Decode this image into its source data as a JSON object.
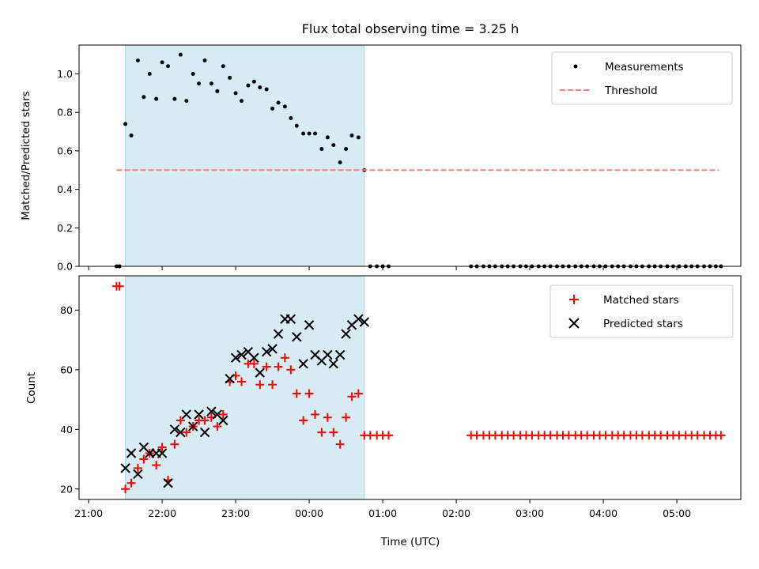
{
  "chart_data": {
    "title": "Flux total observing time = 3.25 h",
    "xlabel": "Time (UTC)",
    "x_unit": "hours (UTC clock, values past 24 are after midnight)",
    "xlim": [
      20.87,
      29.87
    ],
    "xticks": [
      {
        "v": 21,
        "label": "21:00"
      },
      {
        "v": 22,
        "label": "22:00"
      },
      {
        "v": 23,
        "label": "23:00"
      },
      {
        "v": 24,
        "label": "00:00"
      },
      {
        "v": 25,
        "label": "01:00"
      },
      {
        "v": 26,
        "label": "02:00"
      },
      {
        "v": 27,
        "label": "03:00"
      },
      {
        "v": 28,
        "label": "04:00"
      },
      {
        "v": 29,
        "label": "05:00"
      }
    ],
    "observing_window": {
      "start": 21.5,
      "end": 24.75,
      "color": "#add8e6"
    },
    "panels": [
      {
        "type": "scatter",
        "ylabel": "Matched/Predicted stars",
        "ylim": [
          0,
          1.15
        ],
        "yticks": [
          0.0,
          0.2,
          0.4,
          0.6,
          0.8,
          1.0
        ],
        "ytick_labels": [
          "0.0",
          "0.2",
          "0.4",
          "0.6",
          "0.8",
          "1.0"
        ],
        "legend_position": "top-right",
        "series": [
          {
            "name": "Measurements",
            "marker": "dot",
            "color": "#000000",
            "x": [
              21.38,
              21.42,
              21.5,
              21.58,
              21.67,
              21.75,
              21.83,
              21.92,
              22.0,
              22.08,
              22.17,
              22.25,
              22.33,
              22.42,
              22.5,
              22.58,
              22.67,
              22.75,
              22.83,
              22.92,
              23.0,
              23.08,
              23.17,
              23.25,
              23.33,
              23.42,
              23.5,
              23.58,
              23.67,
              23.75,
              23.83,
              23.92,
              24.0,
              24.08,
              24.17,
              24.25,
              24.33,
              24.42,
              24.5,
              24.58,
              24.67,
              24.75,
              24.83,
              24.92,
              25.0,
              25.08,
              26.2,
              26.28,
              26.37,
              26.45,
              26.53,
              26.62,
              26.7,
              26.78,
              26.87,
              26.95,
              27.03,
              27.12,
              27.2,
              27.28,
              27.37,
              27.45,
              27.53,
              27.62,
              27.7,
              27.78,
              27.87,
              27.95,
              28.03,
              28.12,
              28.2,
              28.28,
              28.37,
              28.45,
              28.53,
              28.62,
              28.7,
              28.78,
              28.87,
              28.95,
              29.03,
              29.12,
              29.2,
              29.28,
              29.37,
              29.45,
              29.53,
              29.6
            ],
            "y": [
              0.0,
              0.0,
              0.74,
              0.68,
              1.07,
              0.88,
              1.0,
              0.87,
              1.06,
              1.04,
              0.87,
              1.1,
              0.86,
              1.0,
              0.95,
              1.07,
              0.95,
              0.91,
              1.04,
              0.98,
              0.9,
              0.86,
              0.94,
              0.96,
              0.93,
              0.92,
              0.82,
              0.85,
              0.83,
              0.77,
              0.73,
              0.69,
              0.69,
              0.69,
              0.61,
              0.67,
              0.63,
              0.54,
              0.61,
              0.68,
              0.67,
              0.5,
              0.0,
              0.0,
              0.0,
              0.0,
              0.0,
              0.0,
              0.0,
              0.0,
              0.0,
              0.0,
              0.0,
              0.0,
              0.0,
              0.0,
              0.0,
              0.0,
              0.0,
              0.0,
              0.0,
              0.0,
              0.0,
              0.0,
              0.0,
              0.0,
              0.0,
              0.0,
              0.0,
              0.0,
              0.0,
              0.0,
              0.0,
              0.0,
              0.0,
              0.0,
              0.0,
              0.0,
              0.0,
              0.0,
              0.0,
              0.0,
              0.0,
              0.0,
              0.0,
              0.0,
              0.0,
              0.0
            ]
          },
          {
            "name": "Threshold",
            "marker": "dashed-line",
            "color": "#ff7f7f",
            "x": [
              21.38,
              29.57
            ],
            "y": [
              0.5,
              0.5
            ]
          }
        ]
      },
      {
        "type": "scatter",
        "ylabel": "Count",
        "ylim": [
          16.5,
          91.5
        ],
        "yticks": [
          20,
          40,
          60,
          80
        ],
        "ytick_labels": [
          "20",
          "40",
          "60",
          "80"
        ],
        "legend_position": "top-right",
        "series": [
          {
            "name": "Matched stars",
            "marker": "plus",
            "color": "#ff0000",
            "x": [
              21.38,
              21.42,
              21.5,
              21.58,
              21.67,
              21.75,
              21.83,
              21.92,
              22.0,
              22.08,
              22.17,
              22.25,
              22.33,
              22.42,
              22.5,
              22.58,
              22.67,
              22.75,
              22.83,
              22.92,
              23.0,
              23.08,
              23.17,
              23.25,
              23.33,
              23.42,
              23.5,
              23.58,
              23.67,
              23.75,
              23.83,
              23.92,
              24.0,
              24.08,
              24.17,
              24.25,
              24.33,
              24.42,
              24.5,
              24.58,
              24.67,
              24.75,
              24.83,
              24.92,
              25.0,
              25.08,
              26.2,
              26.28,
              26.37,
              26.45,
              26.53,
              26.62,
              26.7,
              26.78,
              26.87,
              26.95,
              27.03,
              27.12,
              27.2,
              27.28,
              27.37,
              27.45,
              27.53,
              27.62,
              27.7,
              27.78,
              27.87,
              27.95,
              28.03,
              28.12,
              28.2,
              28.28,
              28.37,
              28.45,
              28.53,
              28.62,
              28.7,
              28.78,
              28.87,
              28.95,
              29.03,
              29.12,
              29.2,
              29.28,
              29.37,
              29.45,
              29.53,
              29.6
            ],
            "y": [
              88,
              88,
              20,
              22,
              27,
              30,
              32,
              28,
              34,
              23,
              35,
              43,
              39,
              41,
              43,
              43,
              44,
              41,
              45,
              56,
              58,
              56,
              62,
              62,
              55,
              61,
              55,
              61,
              64,
              60,
              52,
              43,
              52,
              45,
              39,
              44,
              39,
              35,
              44,
              51,
              52,
              38,
              38,
              38,
              38,
              38,
              38,
              38,
              38,
              38,
              38,
              38,
              38,
              38,
              38,
              38,
              38,
              38,
              38,
              38,
              38,
              38,
              38,
              38,
              38,
              38,
              38,
              38,
              38,
              38,
              38,
              38,
              38,
              38,
              38,
              38,
              38,
              38,
              38,
              38,
              38,
              38,
              38,
              38,
              38,
              38,
              38,
              38
            ]
          },
          {
            "name": "Predicted stars",
            "marker": "x",
            "color": "#000000",
            "x": [
              21.5,
              21.58,
              21.67,
              21.75,
              21.83,
              21.92,
              22.0,
              22.08,
              22.17,
              22.25,
              22.33,
              22.42,
              22.5,
              22.58,
              22.67,
              22.75,
              22.83,
              22.92,
              23.0,
              23.08,
              23.17,
              23.25,
              23.33,
              23.42,
              23.5,
              23.58,
              23.67,
              23.75,
              23.83,
              23.92,
              24.0,
              24.08,
              24.17,
              24.25,
              24.33,
              24.42,
              24.5,
              24.58,
              24.67,
              24.75
            ],
            "y": [
              27,
              32,
              25,
              34,
              32,
              32,
              32,
              22,
              40,
              39,
              45,
              41,
              45,
              39,
              46,
              45,
              43,
              57,
              64,
              65,
              66,
              64,
              59,
              66,
              67,
              72,
              77,
              77,
              71,
              62,
              75,
              65,
              63,
              65,
              62,
              65,
              72,
              75,
              77,
              76
            ]
          }
        ]
      }
    ]
  }
}
